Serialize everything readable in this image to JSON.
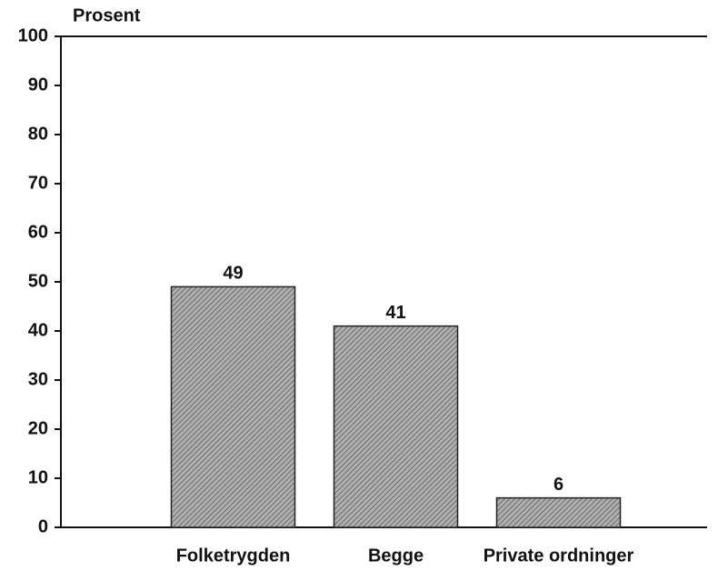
{
  "chart_data": {
    "type": "bar",
    "y_label": "Prosent",
    "categories": [
      "Folketrygden",
      "Begge",
      "Private ordninger"
    ],
    "values": [
      49,
      41,
      6
    ],
    "color": "#9a9a9a",
    "ylim": [
      0,
      100
    ],
    "yticks": [
      0,
      10,
      20,
      30,
      40,
      50,
      60,
      70,
      80,
      90,
      100
    ],
    "grid": false
  }
}
